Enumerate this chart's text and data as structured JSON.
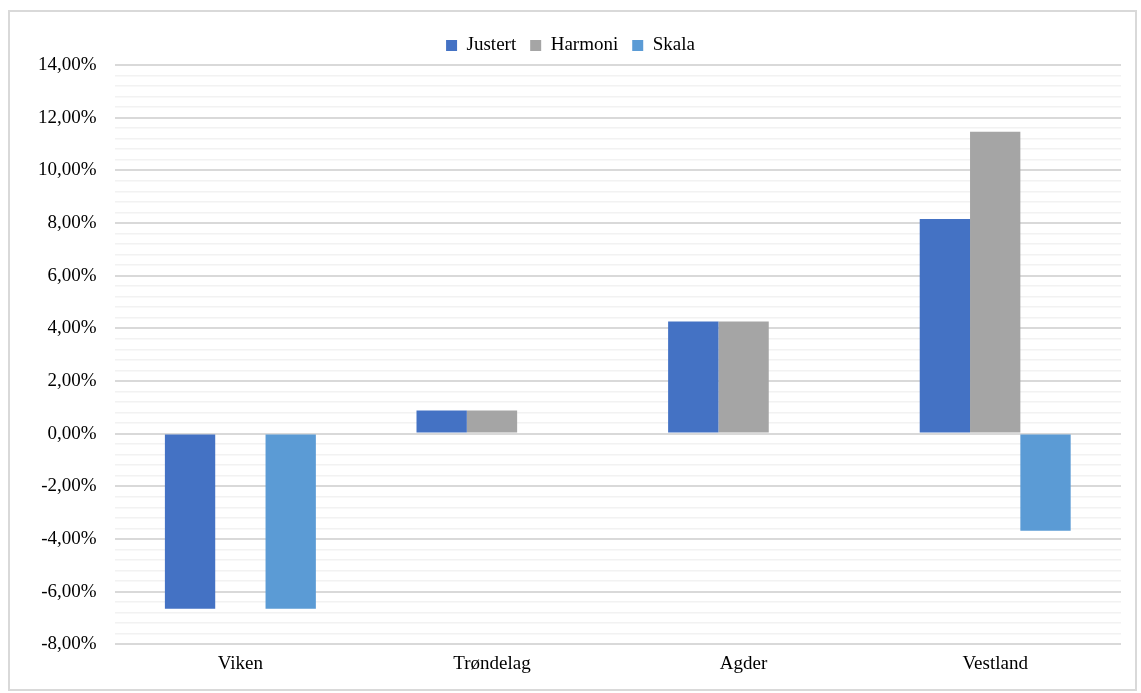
{
  "chart_data": {
    "type": "bar",
    "categories": [
      "Viken",
      "Trøndelag",
      "Agder",
      "Vestland"
    ],
    "series": [
      {
        "name": "Justert",
        "color": "#4472c4",
        "values": [
          -6.65,
          0.88,
          4.26,
          8.15
        ]
      },
      {
        "name": "Harmoni",
        "color": "#a5a5a5",
        "values": [
          0,
          0.88,
          4.26,
          11.46
        ]
      },
      {
        "name": "Skala",
        "color": "#5b9bd5",
        "values": [
          -6.65,
          0,
          0,
          -3.69
        ]
      }
    ],
    "ylim": [
      -8,
      14
    ],
    "yticks": [
      {
        "value": -8,
        "label": "-8,00%"
      },
      {
        "value": -7.6,
        "label": null
      },
      {
        "value": -7.2,
        "label": null
      },
      {
        "value": -6.8,
        "label": null
      },
      {
        "value": -6.4,
        "label": null
      },
      {
        "value": -6,
        "label": "-6,00%"
      },
      {
        "value": -5.6,
        "label": null
      },
      {
        "value": -5.2,
        "label": null
      },
      {
        "value": -4.8,
        "label": null
      },
      {
        "value": -4.4,
        "label": null
      },
      {
        "value": -4,
        "label": "-4,00%"
      },
      {
        "value": -3.6,
        "label": null
      },
      {
        "value": -3.2,
        "label": null
      },
      {
        "value": -2.8,
        "label": null
      },
      {
        "value": -2.4,
        "label": null
      },
      {
        "value": -2,
        "label": "-2,00%"
      },
      {
        "value": -1.6,
        "label": null
      },
      {
        "value": -1.2,
        "label": null
      },
      {
        "value": -0.8,
        "label": null
      },
      {
        "value": -0.4,
        "label": null
      },
      {
        "value": 0,
        "label": "0,00%"
      },
      {
        "value": 0.4,
        "label": null
      },
      {
        "value": 0.8,
        "label": null
      },
      {
        "value": 1.2,
        "label": null
      },
      {
        "value": 1.6,
        "label": null
      },
      {
        "value": 2,
        "label": "2,00%"
      },
      {
        "value": 2.4,
        "label": null
      },
      {
        "value": 2.8,
        "label": null
      },
      {
        "value": 3.2,
        "label": null
      },
      {
        "value": 3.6,
        "label": null
      },
      {
        "value": 4,
        "label": "4,00%"
      },
      {
        "value": 4.4,
        "label": null
      },
      {
        "value": 4.8,
        "label": null
      },
      {
        "value": 5.2,
        "label": null
      },
      {
        "value": 5.6,
        "label": null
      },
      {
        "value": 6,
        "label": "6,00%"
      },
      {
        "value": 6.4,
        "label": null
      },
      {
        "value": 6.8,
        "label": null
      },
      {
        "value": 7.2,
        "label": null
      },
      {
        "value": 7.6,
        "label": null
      },
      {
        "value": 8,
        "label": "8,00%"
      },
      {
        "value": 8.4,
        "label": null
      },
      {
        "value": 8.8,
        "label": null
      },
      {
        "value": 9.2,
        "label": null
      },
      {
        "value": 9.6,
        "label": null
      },
      {
        "value": 10,
        "label": "10,00%"
      },
      {
        "value": 10.4,
        "label": null
      },
      {
        "value": 10.8,
        "label": null
      },
      {
        "value": 11.2,
        "label": null
      },
      {
        "value": 11.6,
        "label": null
      },
      {
        "value": 12,
        "label": "12,00%"
      },
      {
        "value": 12.4,
        "label": null
      },
      {
        "value": 12.8,
        "label": null
      },
      {
        "value": 13.2,
        "label": null
      },
      {
        "value": 13.6,
        "label": null
      },
      {
        "value": 14,
        "label": "14,00%"
      }
    ],
    "grid": "y",
    "legend": "top"
  }
}
